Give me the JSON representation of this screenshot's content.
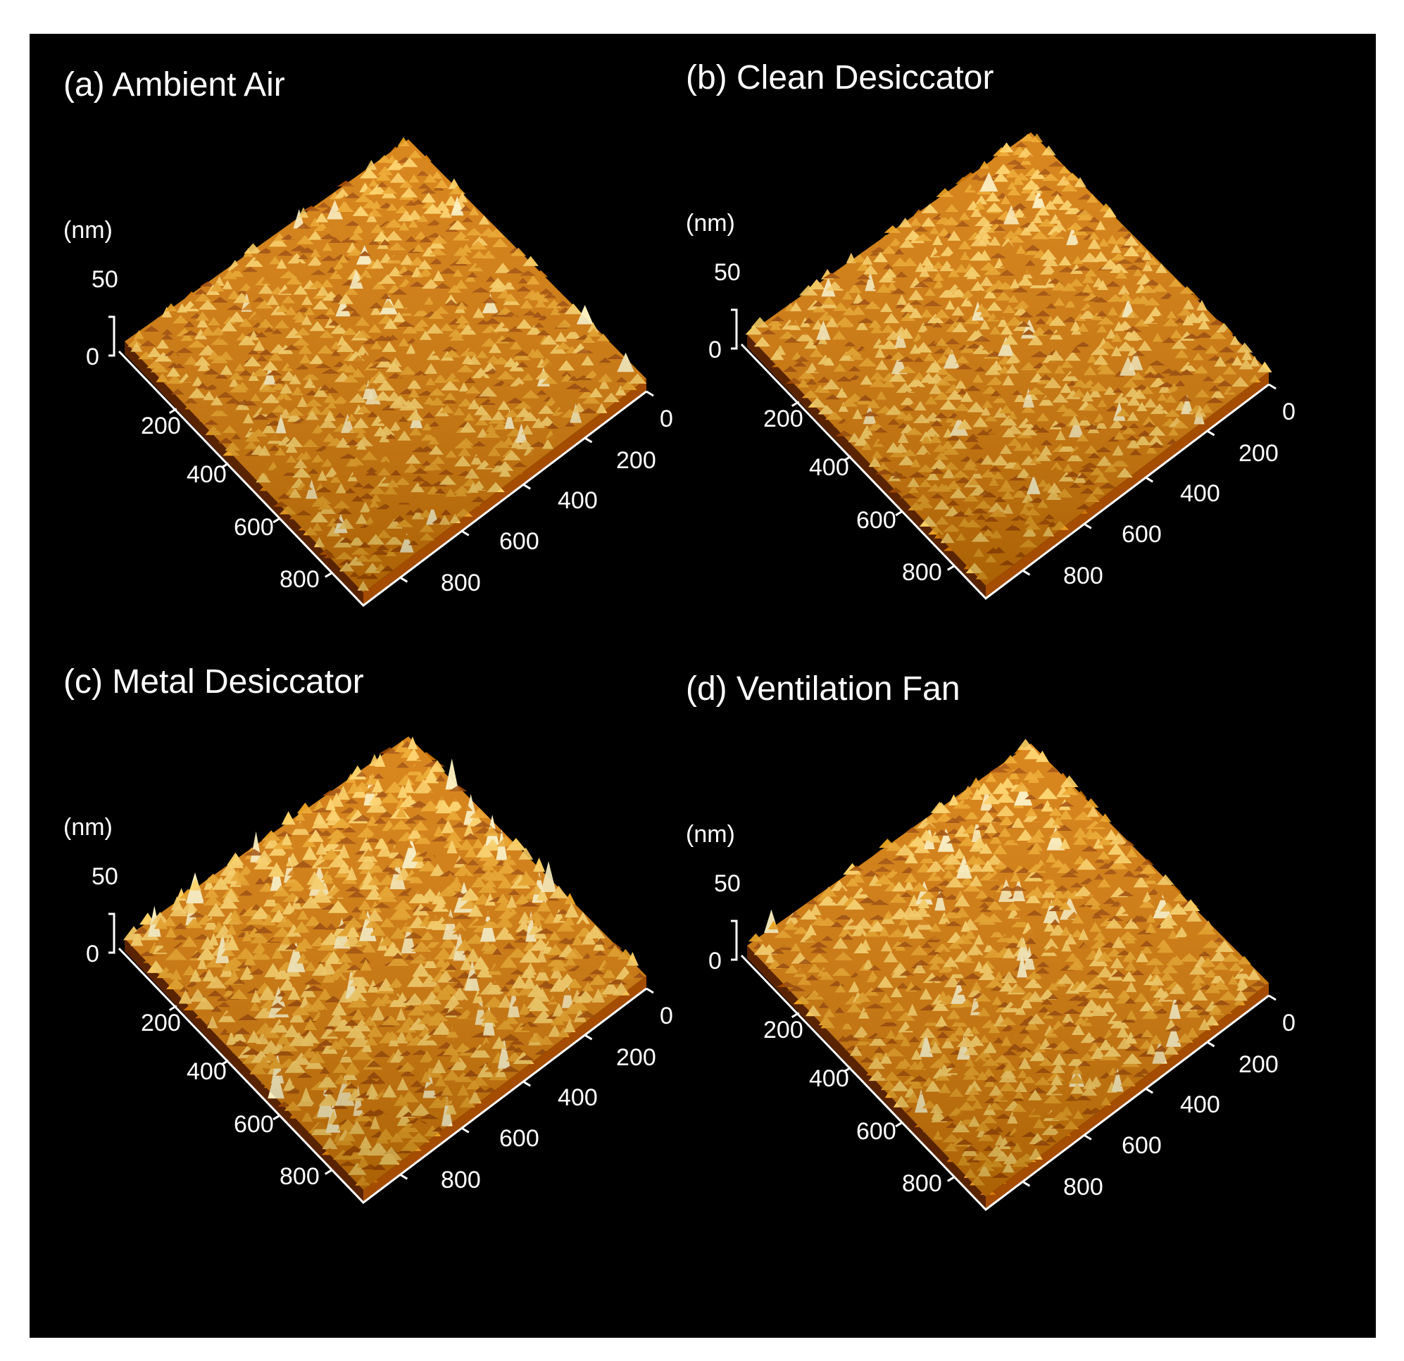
{
  "figure": {
    "background": "#000000",
    "surface_colors": [
      "#5a2400",
      "#a44c00",
      "#d57a06",
      "#eea524",
      "#ffd264",
      "#fff3c2"
    ],
    "panels": [
      {
        "id": "a",
        "title": "(a) Ambient Air",
        "z_unit": "(nm)",
        "z_ticks": [
          "50",
          "0"
        ],
        "x_ticks": [
          "200",
          "400",
          "600",
          "800"
        ],
        "y_ticks": [
          "0",
          "200",
          "400",
          "600",
          "800"
        ],
        "roughness": 0.35
      },
      {
        "id": "b",
        "title": "(b) Clean Desiccator",
        "z_unit": "(nm)",
        "z_ticks": [
          "50",
          "0"
        ],
        "x_ticks": [
          "200",
          "400",
          "600",
          "800"
        ],
        "y_ticks": [
          "0",
          "200",
          "400",
          "600",
          "800"
        ],
        "roughness": 0.35
      },
      {
        "id": "c",
        "title": "(c) Metal Desiccator",
        "z_unit": "(nm)",
        "z_ticks": [
          "50",
          "0"
        ],
        "x_ticks": [
          "200",
          "400",
          "600",
          "800"
        ],
        "y_ticks": [
          "0",
          "200",
          "400",
          "600",
          "800"
        ],
        "roughness": 0.9
      },
      {
        "id": "d",
        "title": "(d) Ventilation   Fan",
        "z_unit": "(nm)",
        "z_ticks": [
          "50",
          "0"
        ],
        "x_ticks": [
          "200",
          "400",
          "600",
          "800"
        ],
        "y_ticks": [
          "0",
          "200",
          "400",
          "600",
          "800"
        ],
        "roughness": 0.55
      }
    ]
  }
}
